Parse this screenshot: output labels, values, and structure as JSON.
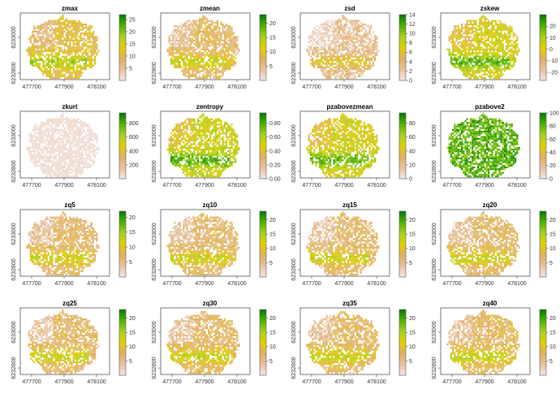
{
  "chart_data": {
    "type": "heatmap",
    "layout": "4x4 grid of raster maps",
    "x_ticks": [
      "477700",
      "477900",
      "478100"
    ],
    "y_ticks": [
      "6232800",
      "6233000"
    ],
    "colors": {
      "ramp": [
        "#f2e7e7",
        "#e8c2a0",
        "#e0b05c",
        "#e0d000",
        "#a8d020",
        "#4cb000",
        "#007a00"
      ],
      "frame": "#555555",
      "no_data": "#ffffff"
    },
    "panels": [
      {
        "title": "zmax",
        "legend_ticks": [
          "5",
          "10",
          "15",
          "20",
          "25"
        ],
        "legend_values": [
          5,
          10,
          15,
          20,
          25
        ],
        "range": [
          0,
          27
        ],
        "level": 0.38
      },
      {
        "title": "zmean",
        "legend_ticks": [
          "5",
          "10",
          "15",
          "20"
        ],
        "legend_values": [
          5,
          10,
          15,
          20
        ],
        "range": [
          0,
          23
        ],
        "level": 0.3
      },
      {
        "title": "zsd",
        "legend_ticks": [
          "0",
          "2",
          "4",
          "6",
          "8",
          "10",
          "12",
          "14"
        ],
        "legend_values": [
          0,
          2,
          4,
          6,
          8,
          10,
          12,
          14
        ],
        "range": [
          0,
          14
        ],
        "level": 0.18
      },
      {
        "title": "zskew",
        "legend_ticks": [
          "-20",
          "-10",
          "0",
          "10",
          "20"
        ],
        "legend_values": [
          -20,
          -10,
          0,
          10,
          20
        ],
        "range": [
          -27,
          30
        ],
        "level": 0.52
      },
      {
        "title": "zkurt",
        "legend_ticks": [
          "200",
          "400",
          "600",
          "800"
        ],
        "legend_values": [
          200,
          400,
          600,
          800
        ],
        "range": [
          0,
          950
        ],
        "level": 0.02
      },
      {
        "title": "zentropy",
        "legend_ticks": [
          "0.00",
          "0.20",
          "0.40",
          "0.60",
          "0.80"
        ],
        "legend_values": [
          0,
          0.2,
          0.4,
          0.6,
          0.8
        ],
        "range": [
          0,
          0.95
        ],
        "level": 0.55
      },
      {
        "title": "pzabovezmean",
        "legend_ticks": [
          "0",
          "20",
          "40",
          "60",
          "80"
        ],
        "legend_values": [
          0,
          20,
          40,
          60,
          80
        ],
        "range": [
          0,
          95
        ],
        "level": 0.52
      },
      {
        "title": "pzabove2",
        "legend_ticks": [
          "0",
          "20",
          "40",
          "60",
          "80",
          "100"
        ],
        "legend_values": [
          0,
          20,
          40,
          60,
          80,
          100
        ],
        "range": [
          0,
          100
        ],
        "level": 0.88
      },
      {
        "title": "zq5",
        "legend_ticks": [
          "5",
          "10",
          "15",
          "20"
        ],
        "legend_values": [
          5,
          10,
          15,
          20
        ],
        "range": [
          0,
          22
        ],
        "level": 0.28
      },
      {
        "title": "zq10",
        "legend_ticks": [
          "5",
          "10",
          "15",
          "20"
        ],
        "legend_values": [
          5,
          10,
          15,
          20
        ],
        "range": [
          0,
          23
        ],
        "level": 0.28
      },
      {
        "title": "zq15",
        "legend_ticks": [
          "5",
          "10",
          "15",
          "20"
        ],
        "legend_values": [
          5,
          10,
          15,
          20
        ],
        "range": [
          0,
          23
        ],
        "level": 0.28
      },
      {
        "title": "zq20",
        "legend_ticks": [
          "5",
          "10",
          "15",
          "20"
        ],
        "legend_values": [
          5,
          10,
          15,
          20
        ],
        "range": [
          0,
          23
        ],
        "level": 0.29
      },
      {
        "title": "zq25",
        "legend_ticks": [
          "5",
          "10",
          "15",
          "20"
        ],
        "legend_values": [
          5,
          10,
          15,
          20
        ],
        "range": [
          0,
          23
        ],
        "level": 0.29
      },
      {
        "title": "zq30",
        "legend_ticks": [
          "5",
          "10",
          "15",
          "20"
        ],
        "legend_values": [
          5,
          10,
          15,
          20
        ],
        "range": [
          0,
          23
        ],
        "level": 0.3
      },
      {
        "title": "zq35",
        "legend_ticks": [
          "5",
          "10",
          "15",
          "20"
        ],
        "legend_values": [
          5,
          10,
          15,
          20
        ],
        "range": [
          0,
          23
        ],
        "level": 0.3
      },
      {
        "title": "zq40",
        "legend_ticks": [
          "5",
          "10",
          "15",
          "20"
        ],
        "legend_values": [
          5,
          10,
          15,
          20
        ],
        "range": [
          0,
          23
        ],
        "level": 0.31
      }
    ]
  }
}
